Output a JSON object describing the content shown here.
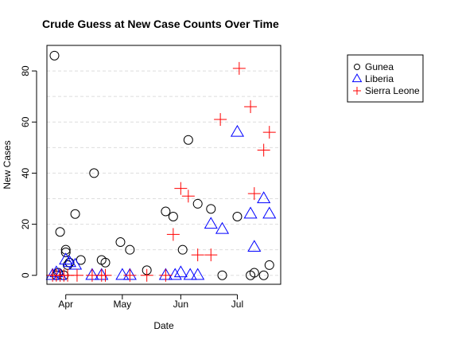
{
  "chart_data": {
    "type": "scatter",
    "title": "Crude Guess at New Case Counts Over Time",
    "xlabel": "Date",
    "ylabel": "New Cases",
    "x_ticks": [
      "Apr",
      "May",
      "Jun",
      "Jul"
    ],
    "x_tick_dates": [
      "2014-04-01",
      "2014-05-01",
      "2014-06-01",
      "2014-07-01"
    ],
    "xlim": [
      "2014-03-22",
      "2014-07-24"
    ],
    "y_ticks": [
      0,
      20,
      40,
      60,
      80
    ],
    "ylim": [
      -3.5,
      90
    ],
    "grid": "horizontal dashed",
    "legend_position": "top-right, outside plot",
    "series": [
      {
        "name": "Gunea",
        "marker": "circle",
        "color": "#000000",
        "points": [
          [
            "2014-03-26",
            86
          ],
          [
            "2014-03-27",
            0
          ],
          [
            "2014-03-28",
            1
          ],
          [
            "2014-03-29",
            17
          ],
          [
            "2014-03-31",
            0
          ],
          [
            "2014-04-01",
            9
          ],
          [
            "2014-04-01",
            10
          ],
          [
            "2014-04-02",
            4
          ],
          [
            "2014-04-03",
            5
          ],
          [
            "2014-04-06",
            24
          ],
          [
            "2014-04-09",
            6
          ],
          [
            "2014-04-16",
            40
          ],
          [
            "2014-04-20",
            6
          ],
          [
            "2014-04-22",
            5
          ],
          [
            "2014-04-30",
            13
          ],
          [
            "2014-05-05",
            10
          ],
          [
            "2014-05-14",
            2
          ],
          [
            "2014-05-24",
            25
          ],
          [
            "2014-05-28",
            23
          ],
          [
            "2014-06-02",
            10
          ],
          [
            "2014-06-05",
            53
          ],
          [
            "2014-06-10",
            28
          ],
          [
            "2014-06-17",
            26
          ],
          [
            "2014-06-23",
            0
          ],
          [
            "2014-07-01",
            23
          ],
          [
            "2014-07-08",
            0
          ],
          [
            "2014-07-10",
            1
          ],
          [
            "2014-07-15",
            0
          ],
          [
            "2014-07-18",
            4
          ]
        ]
      },
      {
        "name": "Liberia",
        "marker": "triangle",
        "color": "#0000ff",
        "points": [
          [
            "2014-03-25",
            0
          ],
          [
            "2014-03-27",
            1
          ],
          [
            "2014-03-29",
            0
          ],
          [
            "2014-04-01",
            6
          ],
          [
            "2014-04-03",
            5
          ],
          [
            "2014-04-06",
            4
          ],
          [
            "2014-04-15",
            0
          ],
          [
            "2014-04-20",
            0
          ],
          [
            "2014-05-01",
            0
          ],
          [
            "2014-05-05",
            0
          ],
          [
            "2014-05-24",
            0
          ],
          [
            "2014-05-29",
            0
          ],
          [
            "2014-06-01",
            1
          ],
          [
            "2014-06-06",
            0
          ],
          [
            "2014-06-10",
            0
          ],
          [
            "2014-06-17",
            20
          ],
          [
            "2014-06-23",
            18
          ],
          [
            "2014-07-01",
            56
          ],
          [
            "2014-07-08",
            24
          ],
          [
            "2014-07-10",
            11
          ],
          [
            "2014-07-15",
            30
          ],
          [
            "2014-07-18",
            24
          ]
        ]
      },
      {
        "name": "Sierra Leone",
        "marker": "plus",
        "color": "#ff0000",
        "points": [
          [
            "2014-03-25",
            0
          ],
          [
            "2014-03-27",
            0
          ],
          [
            "2014-03-29",
            0
          ],
          [
            "2014-03-31",
            0
          ],
          [
            "2014-04-02",
            0
          ],
          [
            "2014-04-07",
            0
          ],
          [
            "2014-04-15",
            0
          ],
          [
            "2014-04-20",
            0
          ],
          [
            "2014-04-22",
            0
          ],
          [
            "2014-05-05",
            0
          ],
          [
            "2014-05-14",
            0
          ],
          [
            "2014-05-24",
            0
          ],
          [
            "2014-05-28",
            16
          ],
          [
            "2014-06-01",
            34
          ],
          [
            "2014-06-05",
            31
          ],
          [
            "2014-06-10",
            8
          ],
          [
            "2014-06-17",
            8
          ],
          [
            "2014-06-22",
            61
          ],
          [
            "2014-07-02",
            81
          ],
          [
            "2014-07-08",
            66
          ],
          [
            "2014-07-10",
            32
          ],
          [
            "2014-07-15",
            49
          ],
          [
            "2014-07-18",
            56
          ]
        ]
      }
    ]
  }
}
